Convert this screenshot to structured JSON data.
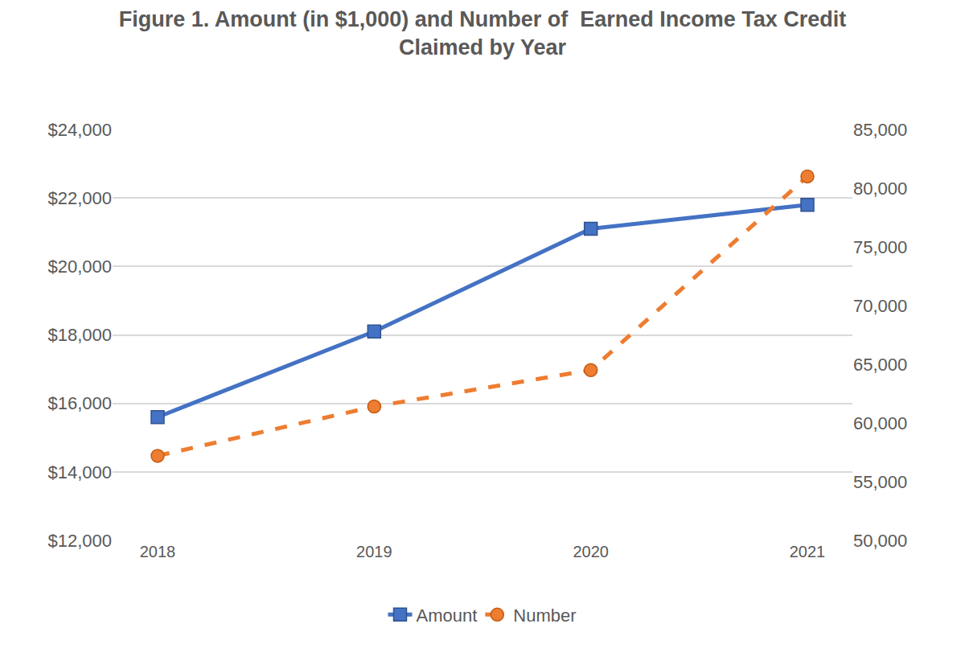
{
  "chart_data": {
    "type": "line",
    "title": "Figure 1. Amount (in $1,000) and Number of  Earned Income Tax Credit\nClaimed by Year",
    "categories": [
      "2018",
      "2019",
      "2020",
      "2021"
    ],
    "series": [
      {
        "name": "Amount",
        "color": "#4472c4",
        "marker": "square",
        "line_style": "solid",
        "values": [
          15600,
          18100,
          21100,
          21800
        ]
      },
      {
        "name": "Number",
        "color": "#ed7d31",
        "marker": "circle",
        "line_style": "dash",
        "axis": "y2",
        "values": [
          57200,
          61400,
          64500,
          81000
        ]
      }
    ],
    "ylim": [
      12000,
      24000
    ],
    "yticks": [
      {
        "value": 12000,
        "label": "$12,000"
      },
      {
        "value": 14000,
        "label": "$14,000"
      },
      {
        "value": 16000,
        "label": "$16,000"
      },
      {
        "value": 18000,
        "label": "$18,000"
      },
      {
        "value": 20000,
        "label": "$20,000"
      },
      {
        "value": 22000,
        "label": "$22,000"
      },
      {
        "value": 24000,
        "label": "$24,000"
      }
    ],
    "y2lim": [
      50000,
      85000
    ],
    "y2ticks": [
      {
        "value": 50000,
        "label": "50,000"
      },
      {
        "value": 55000,
        "label": "55,000"
      },
      {
        "value": 60000,
        "label": "60,000"
      },
      {
        "value": 65000,
        "label": "65,000"
      },
      {
        "value": 70000,
        "label": "70,000"
      },
      {
        "value": 75000,
        "label": "75,000"
      },
      {
        "value": 80000,
        "label": "80,000"
      },
      {
        "value": 85000,
        "label": "85,000"
      }
    ],
    "grid": true,
    "legend": "bottom"
  }
}
